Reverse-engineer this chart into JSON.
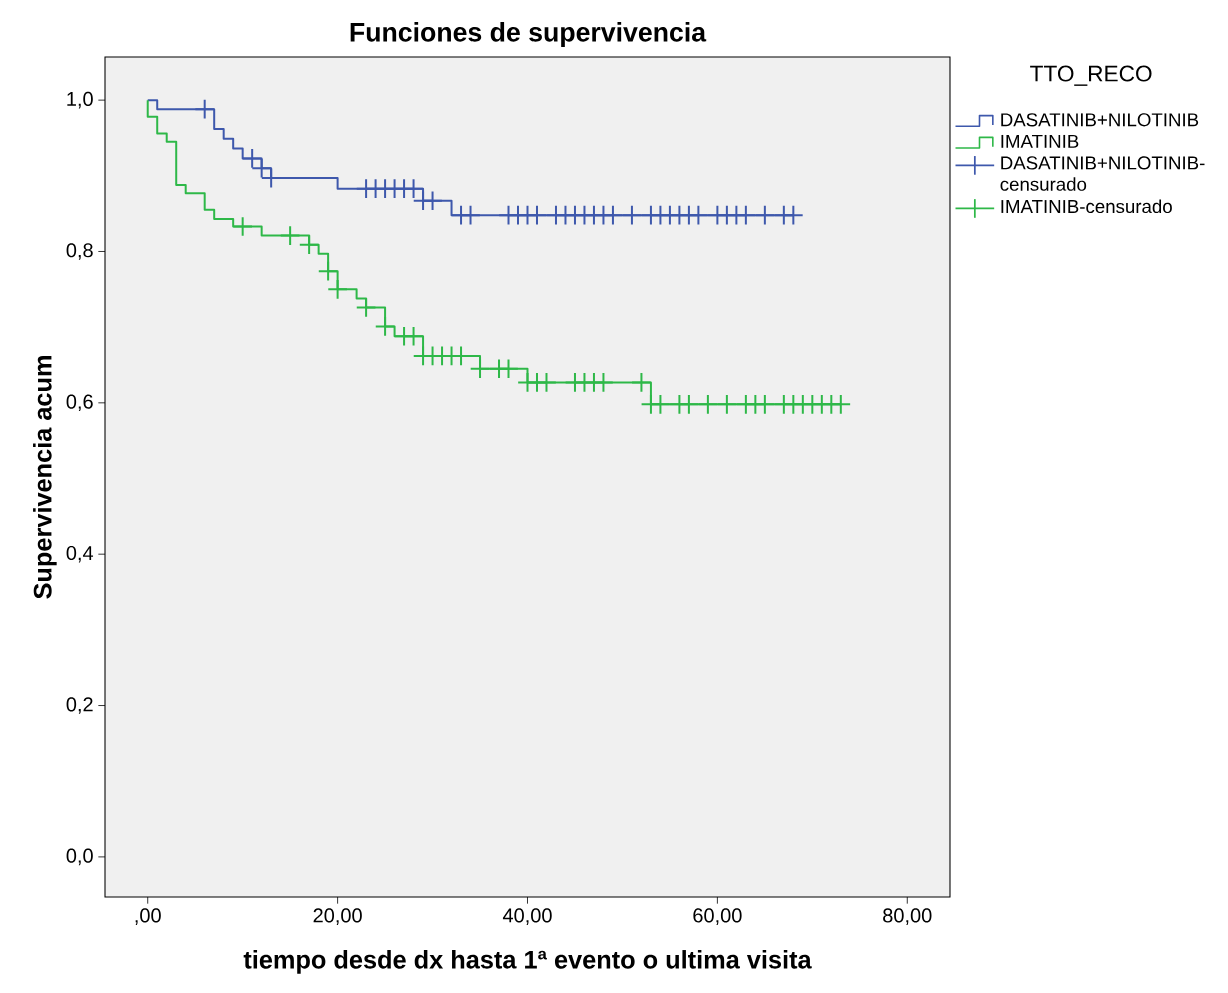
{
  "chart_data": {
    "type": "step",
    "title": "Funciones de supervivencia",
    "xlabel": "tiempo desde dx hasta 1ª evento o ultima visita",
    "ylabel": "Supervivencia acum",
    "legend_title": "TTO_RECO",
    "legend": "right",
    "xlim": [
      -4.5,
      84.5
    ],
    "ylim": [
      -0.053,
      1.057
    ],
    "xticks": [
      {
        "value": 0,
        "label": ",00"
      },
      {
        "value": 20,
        "label": "20,00"
      },
      {
        "value": 40,
        "label": "40,00"
      },
      {
        "value": 60,
        "label": "60,00"
      },
      {
        "value": 80,
        "label": "80,00"
      }
    ],
    "yticks": [
      {
        "value": 0,
        "label": "0,0"
      },
      {
        "value": 0.2,
        "label": "0,2"
      },
      {
        "value": 0.4,
        "label": "0,4"
      },
      {
        "value": 0.6,
        "label": "0,6"
      },
      {
        "value": 0.8,
        "label": "0,8"
      },
      {
        "value": 1.0,
        "label": "1,0"
      }
    ],
    "series": [
      {
        "name": "DASATINIB+NILOTINIB",
        "marker": "none",
        "color": "#3e58ac",
        "x": [
          0,
          1,
          7,
          8,
          9,
          10,
          12,
          13,
          20,
          29,
          32,
          68
        ],
        "values": [
          1.0,
          0.988,
          0.962,
          0.949,
          0.936,
          0.923,
          0.91,
          0.897,
          0.883,
          0.867,
          0.848,
          0.848
        ]
      },
      {
        "name": "IMATINIB",
        "marker": "none",
        "color": "#2eb848",
        "x": [
          0,
          0,
          1,
          2,
          3,
          4,
          6,
          7,
          9,
          12,
          17,
          18,
          19,
          20,
          22,
          23,
          25,
          26,
          29,
          35,
          40,
          53,
          73
        ],
        "values": [
          1.0,
          0.978,
          0.956,
          0.945,
          0.888,
          0.877,
          0.855,
          0.843,
          0.833,
          0.821,
          0.809,
          0.797,
          0.774,
          0.75,
          0.738,
          0.726,
          0.701,
          0.688,
          0.662,
          0.645,
          0.627,
          0.598,
          0.598
        ]
      },
      {
        "name": "DASATINIB+NILOTINIB-censurado",
        "type": "scatter",
        "marker": "cross",
        "color": "#3e58ac",
        "x": [
          6,
          11,
          12,
          13,
          23,
          24,
          25,
          26,
          27,
          28,
          29,
          30,
          33,
          34,
          38,
          39,
          40,
          41,
          43,
          44,
          45,
          46,
          47,
          48,
          49,
          51,
          53,
          54,
          55,
          56,
          57,
          58,
          60,
          61,
          62,
          63,
          65,
          67,
          68
        ],
        "values": [
          0.988,
          0.923,
          0.91,
          0.897,
          0.883,
          0.883,
          0.883,
          0.883,
          0.883,
          0.883,
          0.867,
          0.867,
          0.848,
          0.848,
          0.848,
          0.848,
          0.848,
          0.848,
          0.848,
          0.848,
          0.848,
          0.848,
          0.848,
          0.848,
          0.848,
          0.848,
          0.848,
          0.848,
          0.848,
          0.848,
          0.848,
          0.848,
          0.848,
          0.848,
          0.848,
          0.848,
          0.848,
          0.848,
          0.848
        ]
      },
      {
        "name": "IMATINIB-censurado",
        "type": "scatter",
        "marker": "cross",
        "color": "#2eb848",
        "x": [
          10,
          15,
          17,
          19,
          20,
          23,
          25,
          27,
          28,
          29,
          30,
          31,
          32,
          33,
          35,
          37,
          38,
          40,
          41,
          42,
          45,
          46,
          47,
          48,
          52,
          53,
          54,
          56,
          57,
          59,
          61,
          63,
          64,
          65,
          67,
          68,
          69,
          70,
          71,
          72,
          73
        ],
        "values": [
          0.833,
          0.821,
          0.809,
          0.774,
          0.75,
          0.726,
          0.701,
          0.688,
          0.688,
          0.662,
          0.662,
          0.662,
          0.662,
          0.662,
          0.645,
          0.645,
          0.645,
          0.627,
          0.627,
          0.627,
          0.627,
          0.627,
          0.627,
          0.627,
          0.627,
          0.598,
          0.598,
          0.598,
          0.598,
          0.598,
          0.598,
          0.598,
          0.598,
          0.598,
          0.598,
          0.598,
          0.598,
          0.598,
          0.598,
          0.598,
          0.598
        ]
      }
    ]
  }
}
